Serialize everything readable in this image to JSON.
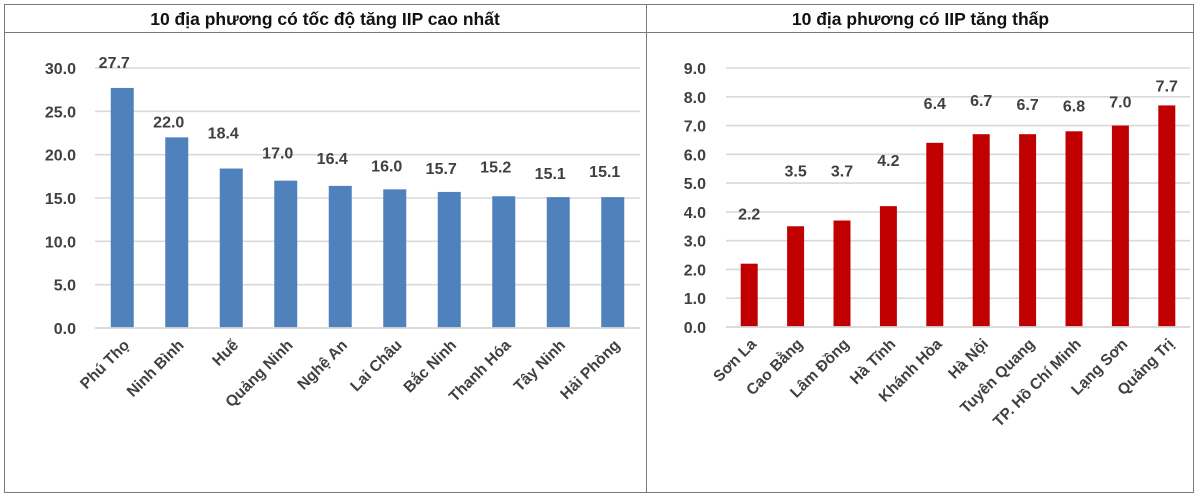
{
  "panels": {
    "left": {
      "title": "10 địa phương có tốc độ tăng IIP cao nhất"
    },
    "right": {
      "title": "10 địa phương có IIP tăng thấp"
    }
  },
  "colors": {
    "left_bar": "#4F81BD",
    "right_bar": "#C00000",
    "gridline": "#D9D9D9",
    "label_text": "#404040",
    "border": "#7A7A7A"
  },
  "chart_data": [
    {
      "type": "bar",
      "title": "10 địa phương có tốc độ tăng IIP cao nhất",
      "categories": [
        "Phú Thọ",
        "Ninh Bình",
        "Huế",
        "Quảng Ninh",
        "Nghệ An",
        "Lai Châu",
        "Bắc Ninh",
        "Thanh Hóa",
        "Tây Ninh",
        "Hải Phòng"
      ],
      "values": [
        27.7,
        22.0,
        18.4,
        17.0,
        16.4,
        16.0,
        15.7,
        15.2,
        15.1,
        15.1
      ],
      "value_labels": [
        "27.7",
        "22.0",
        "18.4",
        "17.0",
        "16.4",
        "16.0",
        "15.7",
        "15.2",
        "15.1",
        "15.1"
      ],
      "xlabel": "",
      "ylabel": "",
      "ylim": [
        0,
        30
      ],
      "yticks": [
        "0.0",
        "5.0",
        "10.0",
        "15.0",
        "20.0",
        "25.0",
        "30.0"
      ],
      "grid": true,
      "legend": null,
      "bar_color": "#4F81BD"
    },
    {
      "type": "bar",
      "title": "10 địa phương có IIP tăng thấp",
      "categories": [
        "Sơn La",
        "Cao Bằng",
        "Lâm Đồng",
        "Hà Tĩnh",
        "Khánh Hòa",
        "Hà Nội",
        "Tuyên Quang",
        "TP. Hồ Chí Minh",
        "Lạng Sơn",
        "Quảng Trị"
      ],
      "values": [
        2.2,
        3.5,
        3.7,
        4.2,
        6.4,
        6.7,
        6.7,
        6.8,
        7.0,
        7.7
      ],
      "value_labels": [
        "2.2",
        "3.5",
        "3.7",
        "4.2",
        "6.4",
        "6.7",
        "6.7",
        "6.8",
        "7.0",
        "7.7"
      ],
      "xlabel": "",
      "ylabel": "",
      "ylim": [
        0,
        9
      ],
      "yticks": [
        "0.0",
        "1.0",
        "2.0",
        "3.0",
        "4.0",
        "5.0",
        "6.0",
        "7.0",
        "8.0",
        "9.0"
      ],
      "grid": true,
      "legend": null,
      "bar_color": "#C00000"
    }
  ]
}
